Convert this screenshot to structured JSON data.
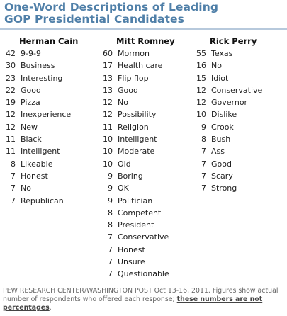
{
  "title": {
    "line1": "One-Word Descriptions of Leading",
    "line2": "GOP Presidential Candidates"
  },
  "columns": [
    {
      "candidate": "Herman Cain",
      "rows": [
        {
          "count": "42",
          "word": "9-9-9"
        },
        {
          "count": "30",
          "word": "Business"
        },
        {
          "count": "23",
          "word": "Interesting"
        },
        {
          "count": "22",
          "word": "Good"
        },
        {
          "count": "19",
          "word": "Pizza"
        },
        {
          "count": "12",
          "word": "Inexperience"
        },
        {
          "count": "12",
          "word": "New"
        },
        {
          "count": "11",
          "word": "Black"
        },
        {
          "count": "11",
          "word": "Intelligent"
        },
        {
          "count": "8",
          "word": "Likeable"
        },
        {
          "count": "7",
          "word": "Honest"
        },
        {
          "count": "7",
          "word": "No"
        },
        {
          "count": "7",
          "word": "Republican"
        }
      ]
    },
    {
      "candidate": "Mitt Romney",
      "rows": [
        {
          "count": "60",
          "word": "Mormon"
        },
        {
          "count": "17",
          "word": "Health care"
        },
        {
          "count": "13",
          "word": "Flip flop"
        },
        {
          "count": "13",
          "word": "Good"
        },
        {
          "count": "12",
          "word": "No"
        },
        {
          "count": "12",
          "word": "Possibility"
        },
        {
          "count": "11",
          "word": "Religion"
        },
        {
          "count": "10",
          "word": "Intelligent"
        },
        {
          "count": "10",
          "word": "Moderate"
        },
        {
          "count": "10",
          "word": "Old"
        },
        {
          "count": "9",
          "word": "Boring"
        },
        {
          "count": "9",
          "word": "OK"
        },
        {
          "count": "9",
          "word": "Politician"
        },
        {
          "count": "8",
          "word": "Competent"
        },
        {
          "count": "8",
          "word": "President"
        },
        {
          "count": "7",
          "word": "Conservative"
        },
        {
          "count": "7",
          "word": "Honest"
        },
        {
          "count": "7",
          "word": "Unsure"
        },
        {
          "count": "7",
          "word": "Questionable"
        }
      ]
    },
    {
      "candidate": "Rick Perry",
      "rows": [
        {
          "count": "55",
          "word": "Texas"
        },
        {
          "count": "16",
          "word": "No"
        },
        {
          "count": "15",
          "word": "Idiot"
        },
        {
          "count": "12",
          "word": "Conservative"
        },
        {
          "count": "12",
          "word": "Governor"
        },
        {
          "count": "10",
          "word": "Dislike"
        },
        {
          "count": "9",
          "word": "Crook"
        },
        {
          "count": "8",
          "word": "Bush"
        },
        {
          "count": "7",
          "word": "Ass"
        },
        {
          "count": "7",
          "word": "Good"
        },
        {
          "count": "7",
          "word": "Scary"
        },
        {
          "count": "7",
          "word": "Strong"
        }
      ]
    }
  ],
  "footer": {
    "text": "PEW RESEARCH CENTER/WASHINGTON POST Oct 13-16, 2011. Figures show actual number of respondents who offered each response; ",
    "emphasis": "these numbers are not percentages",
    "end": "."
  },
  "colors": {
    "title": "#4f7fa8",
    "rule": "#b7c9dc"
  }
}
